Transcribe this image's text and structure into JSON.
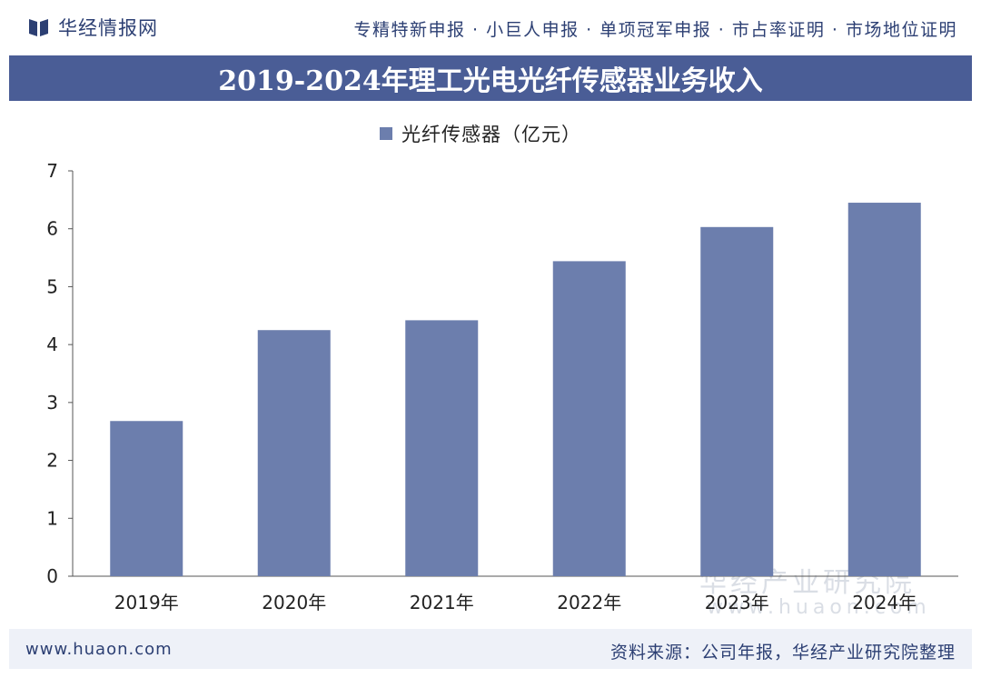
{
  "header": {
    "brand": "华经情报网",
    "services": "专精特新申报 · 小巨人申报 · 单项冠军申报 · 市占率证明 · 市场地位证明"
  },
  "colors": {
    "accent": "#4a5d96",
    "bar": "#6c7ead",
    "text": "#2c3f73"
  },
  "footer": {
    "url": "www.huaon.com",
    "source": "资料来源：公司年报，华经产业研究院整理"
  },
  "watermark": {
    "name": "华经产业研究院",
    "url": "www.huaon.com"
  },
  "chart_data": {
    "type": "bar",
    "title": "2019-2024年理工光电光纤传感器业务收入",
    "categories": [
      "2019年",
      "2020年",
      "2021年",
      "2022年",
      "2023年",
      "2024年"
    ],
    "series": [
      {
        "name": "光纤传感器（亿元）",
        "values": [
          2.68,
          4.25,
          4.42,
          5.44,
          6.03,
          6.45
        ]
      }
    ],
    "ylim": [
      0,
      7
    ],
    "yticks": [
      0,
      1,
      2,
      3,
      4,
      5,
      6,
      7
    ],
    "grid": false,
    "legend": "top-center"
  }
}
